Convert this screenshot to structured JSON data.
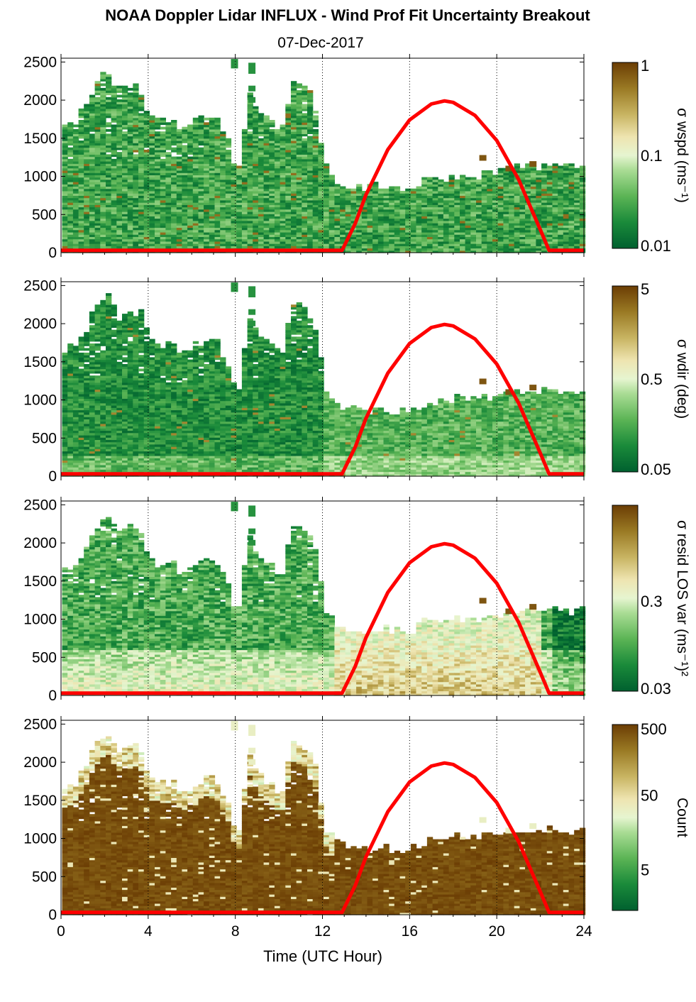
{
  "title": "NOAA Doppler Lidar INFLUX - Wind Prof Fit Uncertainty Breakout",
  "subtitle": "07-Dec-2017",
  "xlabel": "Time (UTC Hour)",
  "colors": {
    "sun_curve": "#ff0000",
    "colormap": [
      "#00602f",
      "#1a8a3a",
      "#5bb455",
      "#a9dc94",
      "#e6f5d0",
      "#eee4b0",
      "#c8b462",
      "#9a7a24",
      "#6b3d04"
    ]
  },
  "chart_data": {
    "type": "heatmap",
    "x": {
      "min": 0,
      "max": 24,
      "ticks": [
        0,
        4,
        8,
        12,
        16,
        20,
        24
      ],
      "tick_labels": [
        "0",
        "4",
        "8",
        "12",
        "16",
        "20",
        "24"
      ],
      "gridlines": [
        4,
        8,
        12,
        16,
        20,
        24
      ],
      "grid": "dotted"
    },
    "y": {
      "min": 0,
      "max": 2550,
      "ticks": [
        0,
        500,
        1000,
        1500,
        2000,
        2500
      ],
      "tick_labels": [
        "0",
        "500",
        "1000",
        "1500",
        "2000",
        "2500"
      ]
    },
    "data_top_height": [
      [
        0,
        1650
      ],
      [
        0.5,
        1700
      ],
      [
        1,
        1900
      ],
      [
        1.5,
        2200
      ],
      [
        2,
        2350
      ],
      [
        2.5,
        2100
      ],
      [
        3,
        2200
      ],
      [
        3.5,
        2150
      ],
      [
        4,
        1750
      ],
      [
        4.5,
        1700
      ],
      [
        5,
        1700
      ],
      [
        5.5,
        1600
      ],
      [
        6,
        1700
      ],
      [
        6.5,
        1800
      ],
      [
        7,
        1750
      ],
      [
        7.5,
        1500
      ],
      [
        8,
        1000
      ],
      [
        8.5,
        2100
      ],
      [
        9,
        1800
      ],
      [
        9.5,
        1700
      ],
      [
        10,
        1550
      ],
      [
        10.5,
        2250
      ],
      [
        11,
        2200
      ],
      [
        11.5,
        2000
      ],
      [
        12,
        1150
      ],
      [
        12.5,
        950
      ],
      [
        13,
        850
      ],
      [
        13.5,
        850
      ],
      [
        14,
        850
      ],
      [
        15,
        850
      ],
      [
        16,
        850
      ],
      [
        16.5,
        950
      ],
      [
        17,
        950
      ],
      [
        18,
        1000
      ],
      [
        19,
        1000
      ],
      [
        20,
        1050
      ],
      [
        21,
        1100
      ],
      [
        22,
        1100
      ],
      [
        23,
        1100
      ],
      [
        24,
        1100
      ]
    ],
    "sun_elevation_curve": {
      "x": [
        0,
        12.9,
        13.5,
        14,
        15,
        16,
        17,
        17.6,
        18,
        19,
        20,
        21,
        22,
        22.4,
        24
      ],
      "y": [
        30,
        30,
        380,
        760,
        1350,
        1740,
        1950,
        1990,
        1970,
        1800,
        1470,
        960,
        300,
        30,
        30
      ]
    },
    "panels": [
      {
        "colorbar_label": "σ wspd (ms⁻¹)",
        "colorbar_ticks": [
          "1",
          "0.1",
          "0.01"
        ],
        "scale": "log"
      },
      {
        "colorbar_label": "σ wdir (deg)",
        "colorbar_ticks": [
          "5",
          "0.5",
          "0.05"
        ],
        "scale": "log"
      },
      {
        "colorbar_label": "σ resid LOS var (ms⁻¹)²",
        "colorbar_ticks": [
          "0.3",
          "0.03"
        ],
        "scale": "log"
      },
      {
        "colorbar_label": "Count",
        "colorbar_ticks": [
          "500",
          "50",
          "5"
        ],
        "scale": "log"
      }
    ]
  }
}
